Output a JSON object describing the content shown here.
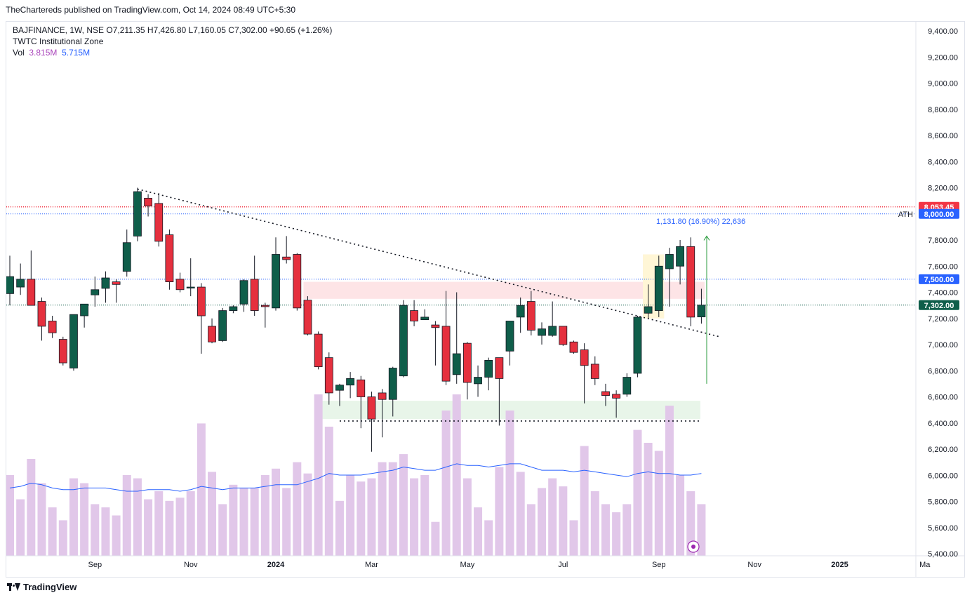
{
  "header": {
    "published_text": "TheChartereds published on TradingView.com, Oct 14, 2024 08:49 UTC+5:30"
  },
  "legend": {
    "symbol_line": "BAJFINANCE, 1W, NSE  O7,211.35  H7,426.80  L7,160.05  C7,302.00  +90.65 (+1.26%)",
    "indicator": "TWTC Institutional Zone",
    "vol_label": "Vol",
    "vol_value_1": "3.815M",
    "vol_value_2": "5.715M"
  },
  "footer": {
    "brand": "TradingView"
  },
  "colors": {
    "up": "#0f5e4a",
    "down": "#e5303e",
    "volume": "#e1c7e9",
    "volume_ma": "#2962ff",
    "resistance_zone": "#fde4e6",
    "support_zone": "#e8f5e9",
    "measure": "#2e9e41",
    "label_blue": "#2962ff",
    "label_red": "#f23645",
    "label_dark": "#0f5e4a"
  },
  "chart_data": {
    "type": "candlestick",
    "ylim": [
      5400,
      9500
    ],
    "y_ticks": [
      "9,400.00",
      "9,200.00",
      "9,000.00",
      "8,800.00",
      "8,600.00",
      "8,400.00",
      "8,200.00",
      "8,000.00",
      "7,800.00",
      "7,600.00",
      "7,400.00",
      "7,200.00",
      "7,000.00",
      "6,800.00",
      "6,600.00",
      "6,400.00",
      "6,200.00",
      "6,000.00",
      "5,800.00",
      "5,600.00",
      "5,400.00"
    ],
    "x_labels": [
      {
        "label": "Sep",
        "index": 8,
        "bold": false
      },
      {
        "label": "Nov",
        "index": 17,
        "bold": false
      },
      {
        "label": "2024",
        "index": 25,
        "bold": true
      },
      {
        "label": "Mar",
        "index": 34,
        "bold": false
      },
      {
        "label": "May",
        "index": 43,
        "bold": false
      },
      {
        "label": "Jul",
        "index": 52,
        "bold": false
      },
      {
        "label": "Sep",
        "index": 61,
        "bold": false
      },
      {
        "label": "Nov",
        "index": 70,
        "bold": false
      },
      {
        "label": "2025",
        "index": 78,
        "bold": true
      },
      {
        "label": "Ma",
        "index": 86,
        "bold": false
      }
    ],
    "candles": [
      {
        "o": 7390,
        "h": 7680,
        "l": 7300,
        "c": 7520
      },
      {
        "o": 7440,
        "h": 7620,
        "l": 7380,
        "c": 7500
      },
      {
        "o": 7500,
        "h": 7720,
        "l": 7300,
        "c": 7300
      },
      {
        "o": 7330,
        "h": 7360,
        "l": 7030,
        "c": 7140
      },
      {
        "o": 7180,
        "h": 7220,
        "l": 7050,
        "c": 7090
      },
      {
        "o": 7040,
        "h": 7060,
        "l": 6840,
        "c": 6860
      },
      {
        "o": 6820,
        "h": 7220,
        "l": 6800,
        "c": 7230
      },
      {
        "o": 7220,
        "h": 7310,
        "l": 7130,
        "c": 7310
      },
      {
        "o": 7380,
        "h": 7520,
        "l": 7290,
        "c": 7420
      },
      {
        "o": 7430,
        "h": 7560,
        "l": 7320,
        "c": 7510
      },
      {
        "o": 7480,
        "h": 7500,
        "l": 7320,
        "c": 7460
      },
      {
        "o": 7560,
        "h": 7880,
        "l": 7520,
        "c": 7780
      },
      {
        "o": 7830,
        "h": 8200,
        "l": 7790,
        "c": 8170
      },
      {
        "o": 8120,
        "h": 8150,
        "l": 7980,
        "c": 8060
      },
      {
        "o": 8080,
        "h": 8160,
        "l": 7750,
        "c": 7790
      },
      {
        "o": 7840,
        "h": 7880,
        "l": 7420,
        "c": 7480
      },
      {
        "o": 7500,
        "h": 7550,
        "l": 7400,
        "c": 7420
      },
      {
        "o": 7440,
        "h": 7660,
        "l": 7370,
        "c": 7440
      },
      {
        "o": 7440,
        "h": 7470,
        "l": 6930,
        "c": 7220
      },
      {
        "o": 7140,
        "h": 7200,
        "l": 7010,
        "c": 7020
      },
      {
        "o": 7030,
        "h": 7280,
        "l": 7020,
        "c": 7260
      },
      {
        "o": 7260,
        "h": 7300,
        "l": 7240,
        "c": 7290
      },
      {
        "o": 7310,
        "h": 7500,
        "l": 7250,
        "c": 7490
      },
      {
        "o": 7500,
        "h": 7680,
        "l": 7220,
        "c": 7260
      },
      {
        "o": 7300,
        "h": 7320,
        "l": 7130,
        "c": 7290
      },
      {
        "o": 7280,
        "h": 7820,
        "l": 7260,
        "c": 7690
      },
      {
        "o": 7670,
        "h": 7830,
        "l": 7620,
        "c": 7650
      },
      {
        "o": 7690,
        "h": 7700,
        "l": 7260,
        "c": 7280
      },
      {
        "o": 7340,
        "h": 7370,
        "l": 7070,
        "c": 7080
      },
      {
        "o": 7080,
        "h": 7100,
        "l": 6810,
        "c": 6830
      },
      {
        "o": 6900,
        "h": 6940,
        "l": 6540,
        "c": 6630
      },
      {
        "o": 6650,
        "h": 6700,
        "l": 6530,
        "c": 6690
      },
      {
        "o": 6690,
        "h": 6790,
        "l": 6590,
        "c": 6740
      },
      {
        "o": 6730,
        "h": 6760,
        "l": 6360,
        "c": 6600
      },
      {
        "o": 6600,
        "h": 6640,
        "l": 6180,
        "c": 6430
      },
      {
        "o": 6630,
        "h": 6660,
        "l": 6290,
        "c": 6580
      },
      {
        "o": 6580,
        "h": 6830,
        "l": 6450,
        "c": 6820
      },
      {
        "o": 6760,
        "h": 7340,
        "l": 6750,
        "c": 7300
      },
      {
        "o": 7260,
        "h": 7340,
        "l": 7140,
        "c": 7180
      },
      {
        "o": 7190,
        "h": 7270,
        "l": 7190,
        "c": 7210
      },
      {
        "o": 7150,
        "h": 7180,
        "l": 6840,
        "c": 7130
      },
      {
        "o": 7140,
        "h": 7410,
        "l": 6690,
        "c": 6720
      },
      {
        "o": 6770,
        "h": 7400,
        "l": 6700,
        "c": 6930
      },
      {
        "o": 7010,
        "h": 7020,
        "l": 6580,
        "c": 6710
      },
      {
        "o": 6700,
        "h": 6840,
        "l": 6600,
        "c": 6750
      },
      {
        "o": 6750,
        "h": 6900,
        "l": 6650,
        "c": 6880
      },
      {
        "o": 6900,
        "h": 6900,
        "l": 6380,
        "c": 6740
      },
      {
        "o": 6950,
        "h": 7180,
        "l": 6840,
        "c": 7180
      },
      {
        "o": 7210,
        "h": 7360,
        "l": 7090,
        "c": 7300
      },
      {
        "o": 7330,
        "h": 7410,
        "l": 7070,
        "c": 7110
      },
      {
        "o": 7070,
        "h": 7170,
        "l": 7000,
        "c": 7120
      },
      {
        "o": 7070,
        "h": 7330,
        "l": 7060,
        "c": 7140
      },
      {
        "o": 7140,
        "h": 7130,
        "l": 6990,
        "c": 7000
      },
      {
        "o": 7020,
        "h": 7030,
        "l": 6930,
        "c": 6940
      },
      {
        "o": 6960,
        "h": 7010,
        "l": 6550,
        "c": 6840
      },
      {
        "o": 6850,
        "h": 6910,
        "l": 6690,
        "c": 6740
      },
      {
        "o": 6640,
        "h": 6700,
        "l": 6530,
        "c": 6610
      },
      {
        "o": 6620,
        "h": 6650,
        "l": 6440,
        "c": 6590
      },
      {
        "o": 6620,
        "h": 6780,
        "l": 6600,
        "c": 6750
      },
      {
        "o": 6780,
        "h": 7220,
        "l": 6750,
        "c": 7210
      },
      {
        "o": 7240,
        "h": 7460,
        "l": 7200,
        "c": 7290
      },
      {
        "o": 7260,
        "h": 7680,
        "l": 7210,
        "c": 7600
      },
      {
        "o": 7580,
        "h": 7740,
        "l": 7290,
        "c": 7690
      },
      {
        "o": 7600,
        "h": 7800,
        "l": 7460,
        "c": 7750
      },
      {
        "o": 7750,
        "h": 7820,
        "l": 7140,
        "c": 7210
      },
      {
        "o": 7211.35,
        "h": 7426.8,
        "l": 7160.05,
        "c": 7302
      }
    ],
    "volume_ms": [
      5.9,
      5.75,
      6.0,
      5.85,
      5.7,
      5.62,
      5.88,
      5.85,
      5.72,
      5.7,
      5.65,
      5.9,
      5.88,
      5.75,
      5.8,
      5.74,
      5.76,
      5.8,
      6.22,
      5.92,
      5.72,
      5.84,
      5.82,
      5.82,
      5.9,
      5.94,
      5.82,
      5.98,
      5.91,
      6.4,
      6.2,
      5.74,
      5.9,
      5.86,
      5.88,
      5.98,
      5.98,
      6.03,
      5.88,
      5.9,
      5.61,
      6.3,
      6.4,
      5.88,
      5.7,
      5.62,
      5.95,
      6.3,
      5.92,
      5.72,
      5.82,
      5.88,
      5.83,
      5.62,
      6.08,
      5.8,
      5.72,
      5.67,
      5.72,
      6.18,
      6.1,
      6.05,
      6.33,
      5.9,
      5.8,
      5.72
    ],
    "volume_ma_ms": [
      5.82,
      5.83,
      5.85,
      5.84,
      5.82,
      5.81,
      5.81,
      5.82,
      5.82,
      5.82,
      5.81,
      5.8,
      5.8,
      5.81,
      5.81,
      5.81,
      5.8,
      5.81,
      5.83,
      5.82,
      5.81,
      5.82,
      5.82,
      5.82,
      5.83,
      5.84,
      5.84,
      5.84,
      5.86,
      5.88,
      5.91,
      5.9,
      5.9,
      5.9,
      5.91,
      5.92,
      5.93,
      5.95,
      5.94,
      5.93,
      5.93,
      5.95,
      5.97,
      5.96,
      5.96,
      5.95,
      5.96,
      5.97,
      5.97,
      5.95,
      5.93,
      5.93,
      5.93,
      5.92,
      5.93,
      5.92,
      5.91,
      5.9,
      5.89,
      5.91,
      5.92,
      5.91,
      5.91,
      5.9,
      5.9,
      5.91
    ],
    "resistance_zone": [
      7350,
      7480
    ],
    "support_zone": [
      6430,
      6570
    ],
    "trendline_down": [
      {
        "i": 12,
        "p": 8190
      },
      {
        "i": 66.7,
        "p": 7060
      }
    ],
    "support_line": {
      "from": 31,
      "to": 65,
      "p": 6415
    },
    "hlines": [
      {
        "price": 8053.45,
        "label": "8,053.45",
        "style": "dotted",
        "color": "#f23645"
      },
      {
        "price": 8000,
        "label": "8,000.00",
        "style": "dotted",
        "color": "#2962ff",
        "tag": "ATH"
      },
      {
        "price": 7500,
        "label": "7,500.00",
        "style": "dotted",
        "color": "#2962ff"
      },
      {
        "price": 7302,
        "label": "7,302.00",
        "style": "dotted",
        "color": "#0f5e4a"
      }
    ],
    "measure": {
      "label": "1,131.80 (16.90%) 22,636",
      "i": 65.5,
      "from": 6700,
      "to": 7830
    }
  }
}
